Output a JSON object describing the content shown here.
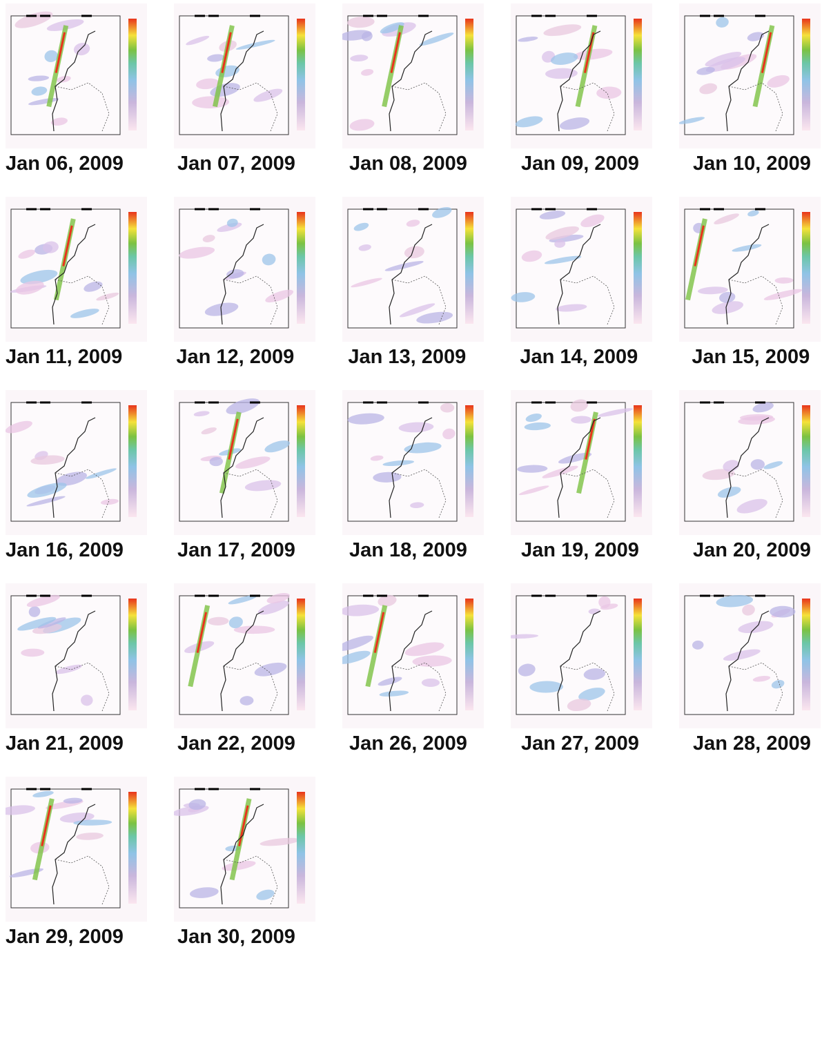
{
  "captions": [
    "Jan 06, 2009",
    "Jan 07, 2009",
    "Jan 08, 2009",
    "Jan 09, 2009",
    "Jan 10, 2009",
    "Jan 11, 2009",
    "Jan 12, 2009",
    "Jan 13, 2009",
    "Jan 14, 2009",
    "Jan 15, 2009",
    "Jan 16, 2009",
    "Jan 17, 2009",
    "Jan 18, 2009",
    "Jan 19, 2009",
    "Jan 20, 2009",
    "Jan 21, 2009",
    "Jan 22, 2009",
    "Jan 26, 2009",
    "Jan 27, 2009",
    "Jan 28, 2009",
    "Jan 29, 2009",
    "Jan 30, 2009"
  ]
}
